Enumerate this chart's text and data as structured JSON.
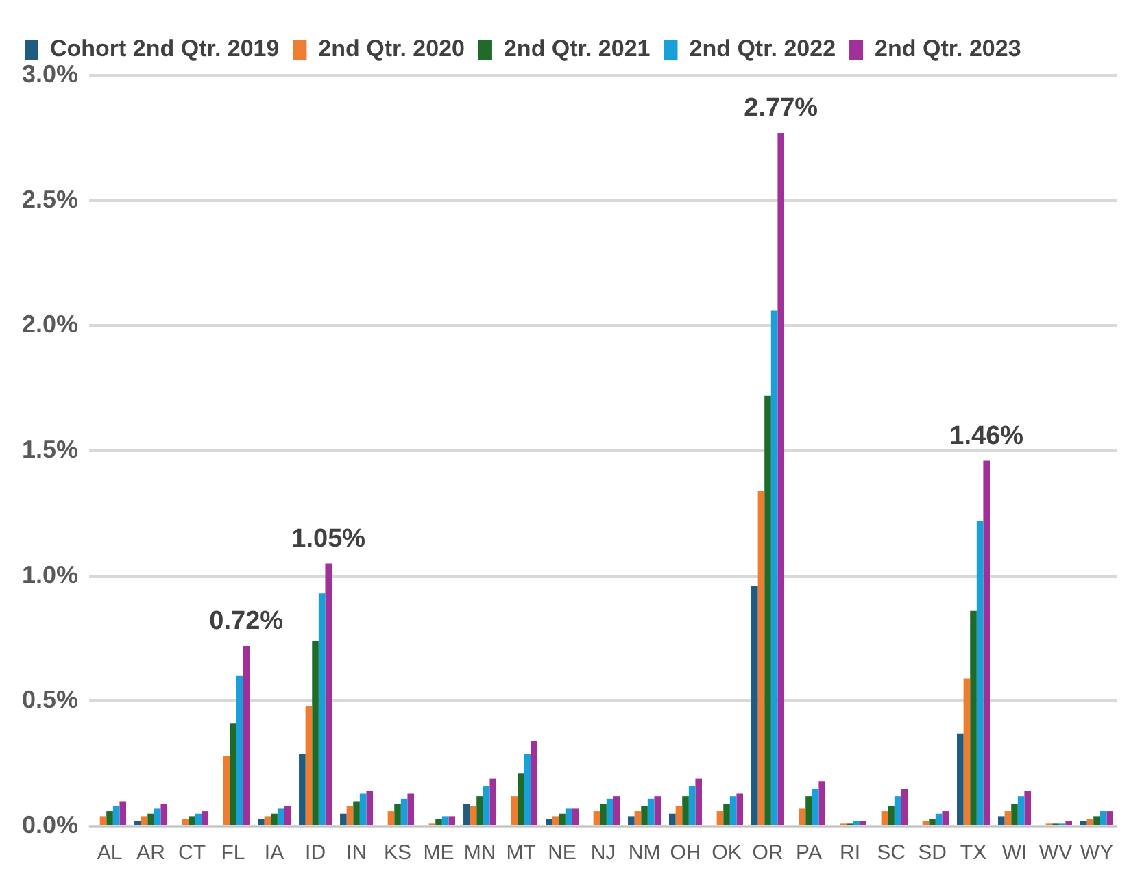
{
  "chart_data": {
    "type": "bar",
    "categories": [
      "AL",
      "AR",
      "CT",
      "FL",
      "IA",
      "ID",
      "IN",
      "KS",
      "ME",
      "MN",
      "MT",
      "NE",
      "NJ",
      "NM",
      "OH",
      "OK",
      "OR",
      "PA",
      "RI",
      "SC",
      "SD",
      "TX",
      "WI",
      "WV",
      "WY"
    ],
    "series": [
      {
        "name": "Cohort 2nd Qtr. 2019",
        "color": "#1f5c7f",
        "values": [
          null,
          0.02,
          null,
          null,
          0.03,
          0.29,
          0.05,
          null,
          null,
          0.09,
          null,
          0.03,
          null,
          0.04,
          0.05,
          null,
          0.96,
          null,
          null,
          null,
          null,
          0.37,
          0.04,
          null,
          0.02
        ]
      },
      {
        "name": "2nd Qtr. 2020",
        "color": "#ed7d31",
        "values": [
          0.04,
          0.04,
          0.03,
          0.28,
          0.04,
          0.48,
          0.08,
          0.06,
          0.01,
          0.08,
          0.12,
          0.04,
          0.06,
          0.06,
          0.08,
          0.06,
          1.34,
          0.07,
          0.01,
          0.06,
          0.02,
          0.59,
          0.06,
          0.01,
          0.03
        ]
      },
      {
        "name": "2nd Qtr. 2021",
        "color": "#1e6b2a",
        "values": [
          0.06,
          0.05,
          0.04,
          0.41,
          0.05,
          0.74,
          0.1,
          0.09,
          0.03,
          0.12,
          0.21,
          0.05,
          0.09,
          0.08,
          0.12,
          0.09,
          1.72,
          0.12,
          0.01,
          0.08,
          0.03,
          0.86,
          0.09,
          0.01,
          0.04
        ]
      },
      {
        "name": "2nd Qtr. 2022",
        "color": "#1aa0d8",
        "values": [
          0.08,
          0.07,
          0.05,
          0.6,
          0.07,
          0.93,
          0.13,
          0.11,
          0.04,
          0.16,
          0.29,
          0.07,
          0.11,
          0.11,
          0.16,
          0.12,
          2.06,
          0.15,
          0.02,
          0.12,
          0.05,
          1.22,
          0.12,
          0.01,
          0.06
        ]
      },
      {
        "name": "2nd Qtr. 2023",
        "color": "#a0309a",
        "values": [
          0.1,
          0.09,
          0.06,
          0.72,
          0.08,
          1.05,
          0.14,
          0.13,
          0.04,
          0.19,
          0.34,
          0.07,
          0.12,
          0.12,
          0.19,
          0.13,
          2.77,
          0.18,
          0.02,
          0.15,
          0.06,
          1.46,
          0.14,
          0.02,
          0.06
        ],
        "value_labels": [
          null,
          null,
          null,
          "0.72%",
          null,
          "1.05%",
          null,
          null,
          null,
          null,
          null,
          null,
          null,
          null,
          null,
          null,
          "2.77%",
          null,
          null,
          null,
          null,
          "1.46%",
          null,
          null,
          null
        ]
      }
    ],
    "ylim": [
      0,
      3
    ],
    "yticks": [
      {
        "value": 0,
        "label": "0.0%"
      },
      {
        "value": 0.5,
        "label": "0.5%"
      },
      {
        "value": 1,
        "label": "1.0%"
      },
      {
        "value": 1.5,
        "label": "1.5%"
      },
      {
        "value": 2,
        "label": "2.0%"
      },
      {
        "value": 2.5,
        "label": "2.5%"
      },
      {
        "value": 3,
        "label": "3.0%"
      }
    ],
    "grid": "y",
    "legend": "top left"
  }
}
